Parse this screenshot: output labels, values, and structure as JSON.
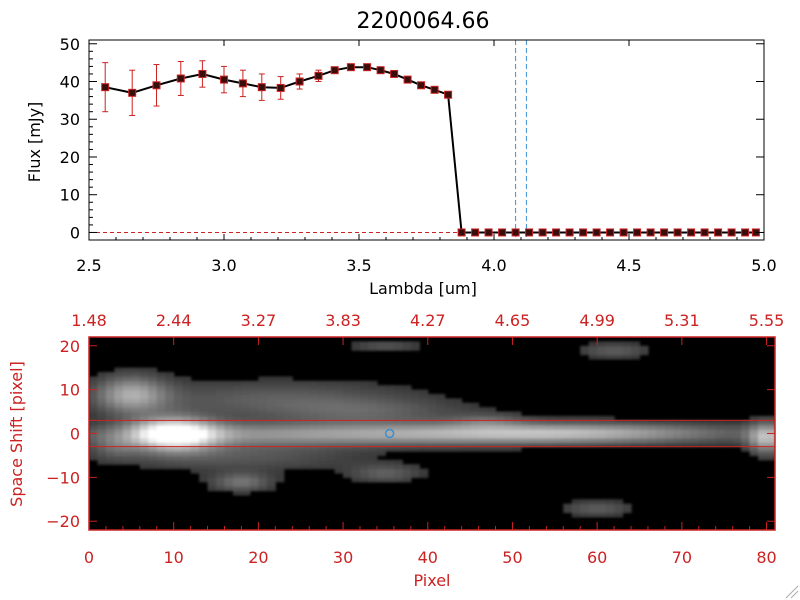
{
  "colors": {
    "black": "#000000",
    "red": "#cc2222",
    "blue": "#3a8fd0",
    "white": "#ffffff"
  },
  "chart_data": [
    {
      "type": "line",
      "title": "2200064.66",
      "xlabel": "Lambda [um]",
      "ylabel": "Flux [mJy]",
      "xlim": [
        2.5,
        5.0
      ],
      "ylim": [
        -2,
        51
      ],
      "x_ticks": [
        2.5,
        3.0,
        3.5,
        4.0,
        4.5,
        5.0
      ],
      "x_tick_labels": [
        "2.5",
        "3.0",
        "3.5",
        "4.0",
        "4.5",
        "5.0"
      ],
      "y_ticks": [
        0,
        10,
        20,
        30,
        40,
        50
      ],
      "y_tick_labels": [
        "0",
        "10",
        "20",
        "30",
        "40",
        "50"
      ],
      "grid": false,
      "series": [
        {
          "x": [
            2.56,
            2.66,
            2.75,
            2.84,
            2.92,
            3.0,
            3.07,
            3.14,
            3.21,
            3.28,
            3.35,
            3.41,
            3.47,
            3.53,
            3.58,
            3.63,
            3.68,
            3.73,
            3.78,
            3.83,
            3.88,
            3.93,
            3.98,
            4.03,
            4.08,
            4.13,
            4.18,
            4.23,
            4.28,
            4.33,
            4.38,
            4.43,
            4.48,
            4.53,
            4.58,
            4.63,
            4.68,
            4.73,
            4.78,
            4.83,
            4.88,
            4.93,
            4.97
          ],
          "y": [
            38.5,
            37.0,
            39.0,
            40.8,
            42.0,
            40.5,
            39.5,
            38.5,
            38.3,
            40.0,
            41.5,
            43.0,
            43.8,
            43.8,
            43.0,
            42.0,
            40.5,
            39.0,
            37.8,
            36.5,
            0,
            0,
            0,
            0,
            0,
            0,
            0,
            0,
            0,
            0,
            0,
            0,
            0,
            0,
            0,
            0,
            0,
            0,
            0,
            0,
            0,
            0,
            0
          ],
          "yerr": [
            6.5,
            6.0,
            5.5,
            4.5,
            3.5,
            3.5,
            3.5,
            3.5,
            3.0,
            2.0,
            1.5,
            0.8,
            0.5,
            0.4,
            0.4,
            0.4,
            0.4,
            0.4,
            0.4,
            0.4,
            0,
            0,
            0,
            0,
            0,
            0,
            0,
            0,
            0,
            0,
            0,
            0,
            0,
            0,
            0,
            0,
            0,
            0,
            0,
            0,
            0,
            0,
            0
          ]
        }
      ],
      "vlines": [
        4.08,
        4.12
      ]
    },
    {
      "type": "heatmap",
      "xlabel": "Pixel",
      "ylabel": "Space Shift [pixel]",
      "xlim": [
        0,
        81
      ],
      "ylim": [
        -22,
        22
      ],
      "x_ticks": [
        0,
        10,
        20,
        30,
        40,
        50,
        60,
        70,
        80
      ],
      "x_tick_labels": [
        "0",
        "10",
        "20",
        "30",
        "40",
        "50",
        "60",
        "70",
        "80"
      ],
      "y_ticks": [
        -20,
        -10,
        0,
        10,
        20
      ],
      "y_tick_labels": [
        "−20",
        "−10",
        "0",
        "10",
        "20"
      ],
      "top_ticks": [
        0,
        10,
        20,
        30,
        40,
        50,
        60,
        70,
        80
      ],
      "top_tick_labels": [
        "1.48",
        "2.44",
        "3.27",
        "3.83",
        "4.27",
        "4.65",
        "4.99",
        "5.31",
        "5.55"
      ],
      "hlines": [
        3,
        -3
      ],
      "marker": {
        "x": 35.5,
        "y": 0
      },
      "blobs": [
        {
          "x": 10,
          "y": 0,
          "sx": 3.5,
          "sy": 2.6,
          "v": 1.0
        },
        {
          "x": 35,
          "y": 0,
          "sx": 25,
          "sy": 1.8,
          "v": 0.55
        },
        {
          "x": 58,
          "y": 0.3,
          "sx": 12,
          "sy": 1.5,
          "v": 0.35
        },
        {
          "x": 5,
          "y": 9,
          "sx": 3,
          "sy": 3,
          "v": 0.55
        },
        {
          "x": 22,
          "y": 8,
          "sx": 12,
          "sy": 3,
          "v": 0.25
        },
        {
          "x": 33,
          "y": 5,
          "sx": 8,
          "sy": 2,
          "v": 0.2
        },
        {
          "x": 18,
          "y": -5,
          "sx": 10,
          "sy": 2.5,
          "v": 0.22
        },
        {
          "x": 18,
          "y": -11,
          "sx": 2.5,
          "sy": 1.5,
          "v": 0.35
        },
        {
          "x": 35,
          "y": -9,
          "sx": 3,
          "sy": 1.5,
          "v": 0.25
        },
        {
          "x": 80,
          "y": -1,
          "sx": 1.5,
          "sy": 2.5,
          "v": 0.6
        },
        {
          "x": 62,
          "y": 19,
          "sx": 3,
          "sy": 1.2,
          "v": 0.25
        },
        {
          "x": 60,
          "y": -17,
          "sx": 3,
          "sy": 1.2,
          "v": 0.25
        },
        {
          "x": 35,
          "y": 20,
          "sx": 3,
          "sy": 1,
          "v": 0.2
        },
        {
          "x": 47,
          "y": 3,
          "sx": 3,
          "sy": 1.2,
          "v": 0.2
        },
        {
          "x": 3,
          "y": -3,
          "sx": 2,
          "sy": 2,
          "v": 0.2
        }
      ]
    }
  ]
}
